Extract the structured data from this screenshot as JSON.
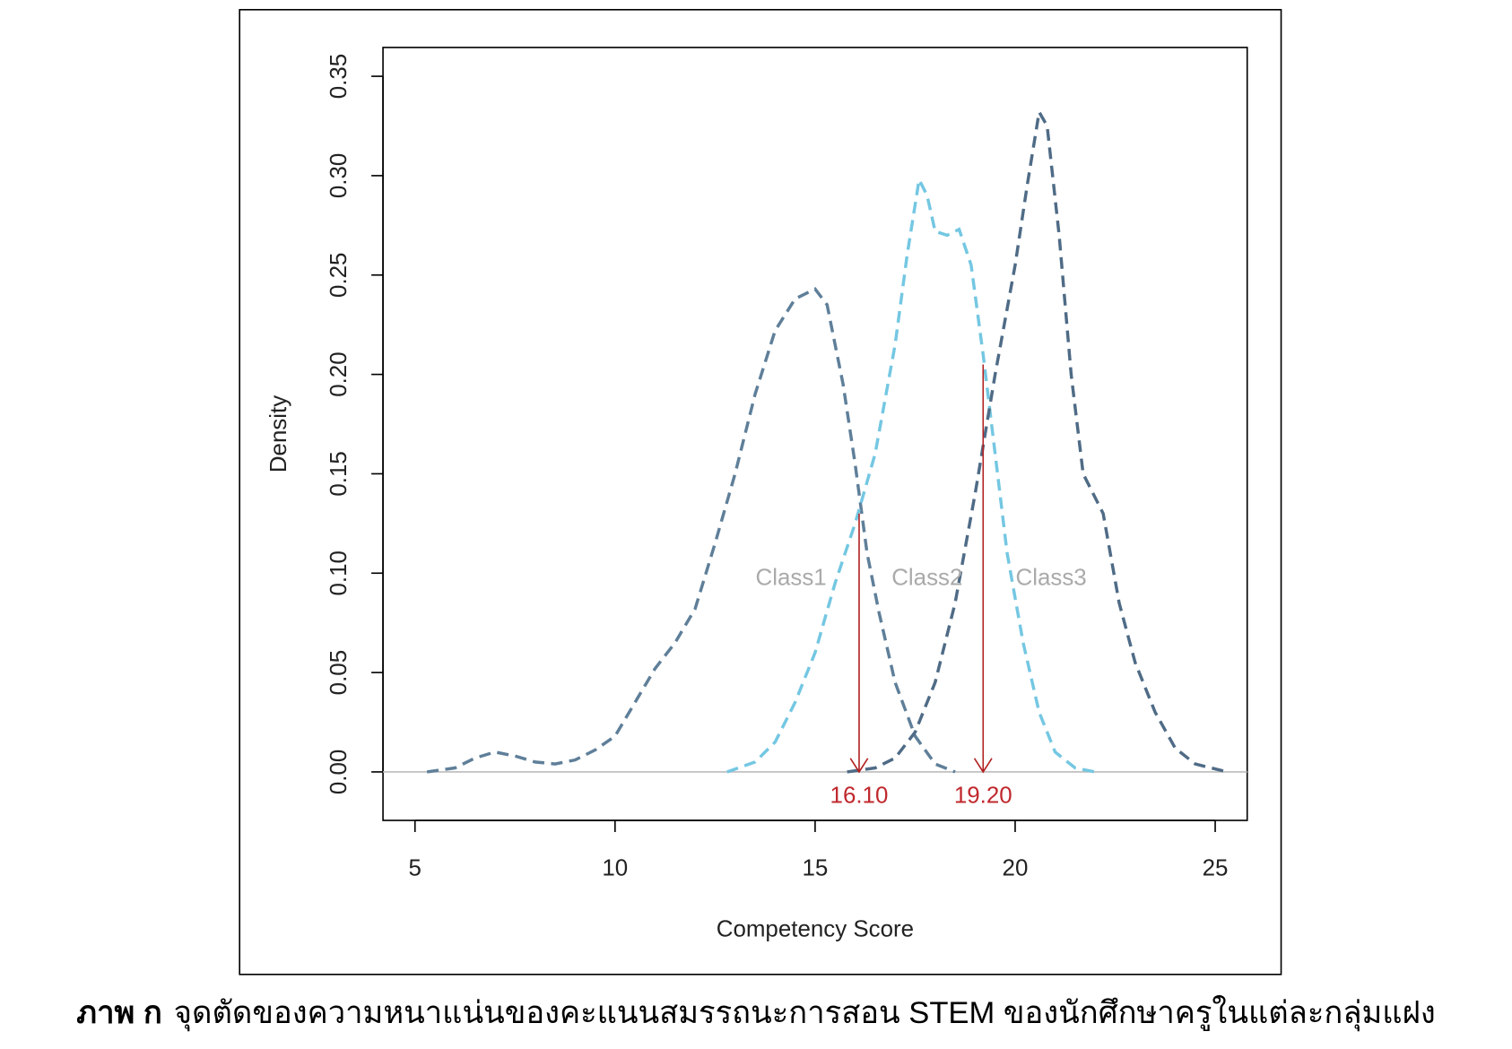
{
  "chart_data": {
    "type": "line",
    "xlabel": "Competency Score",
    "ylabel": "Density",
    "caption_bold": "ภาพ ก",
    "caption": "จุดตัดของความหนาแน่นของคะแนนสมรรถนะการสอน STEM ของนักศึกษาครูในแต่ละกลุ่มแฝง",
    "xlim": [
      4.2,
      25.8
    ],
    "ylim": [
      -0.0244,
      0.3645
    ],
    "xticks": [
      5,
      10,
      15,
      20,
      25
    ],
    "yticks": [
      {
        "value": 0,
        "label": "0.00"
      },
      {
        "value": 0.05,
        "label": "0.05"
      },
      {
        "value": 0.1,
        "label": "0.10"
      },
      {
        "value": 0.15,
        "label": "0.15"
      },
      {
        "value": 0.2,
        "label": "0.20"
      },
      {
        "value": 0.25,
        "label": "0.25"
      },
      {
        "value": 0.3,
        "label": "0.30"
      },
      {
        "value": 0.35,
        "label": "0.35"
      }
    ],
    "reference_line": 0,
    "series": [
      {
        "name": "Class1",
        "color": "#5f7f99",
        "x": [
          5.3,
          6,
          6.5,
          7,
          7.5,
          8,
          8.5,
          9,
          9.5,
          10,
          10.5,
          11,
          11.5,
          12,
          12.5,
          13,
          13.5,
          14,
          14.5,
          15,
          15.3,
          15.7,
          16,
          16.3,
          16.6,
          17,
          17.5,
          18,
          18.5
        ],
        "values": [
          0,
          0.002,
          0.007,
          0.01,
          0.008,
          0.005,
          0.004,
          0.006,
          0.011,
          0.018,
          0.035,
          0.052,
          0.065,
          0.082,
          0.115,
          0.15,
          0.19,
          0.222,
          0.238,
          0.243,
          0.235,
          0.195,
          0.155,
          0.11,
          0.08,
          0.045,
          0.018,
          0.004,
          0
        ]
      },
      {
        "name": "Class2",
        "color": "#74c7e2",
        "x": [
          12.8,
          13.5,
          14,
          14.5,
          15,
          15.5,
          16,
          16.5,
          17,
          17.3,
          17.6,
          17.8,
          18,
          18.3,
          18.6,
          18.9,
          19.2,
          19.5,
          19.8,
          20.2,
          20.6,
          21,
          21.5,
          22
        ],
        "values": [
          0,
          0.005,
          0.015,
          0.035,
          0.06,
          0.095,
          0.125,
          0.16,
          0.215,
          0.26,
          0.298,
          0.29,
          0.272,
          0.27,
          0.273,
          0.255,
          0.21,
          0.16,
          0.11,
          0.065,
          0.03,
          0.01,
          0.002,
          0
        ]
      },
      {
        "name": "Class3",
        "color": "#4f6b86",
        "x": [
          15.8,
          16.5,
          17,
          17.5,
          18,
          18.5,
          19,
          19.5,
          20,
          20.3,
          20.6,
          20.8,
          21.1,
          21.4,
          21.7,
          22.2,
          22.6,
          23,
          23.5,
          24,
          24.5,
          25.3
        ],
        "values": [
          0,
          0.002,
          0.007,
          0.02,
          0.045,
          0.085,
          0.14,
          0.2,
          0.255,
          0.295,
          0.332,
          0.325,
          0.27,
          0.2,
          0.15,
          0.13,
          0.085,
          0.055,
          0.03,
          0.012,
          0.004,
          0
        ]
      }
    ],
    "class_labels": [
      {
        "text": "Class1",
        "x": 14.4,
        "y": 0.098
      },
      {
        "text": "Class2",
        "x": 17.8,
        "y": 0.098
      },
      {
        "text": "Class3",
        "x": 20.9,
        "y": 0.098
      }
    ],
    "cut_points": [
      {
        "x": 16.1,
        "label": "16.10",
        "top": 0.13
      },
      {
        "x": 19.2,
        "label": "19.20",
        "top": 0.205
      }
    ]
  }
}
